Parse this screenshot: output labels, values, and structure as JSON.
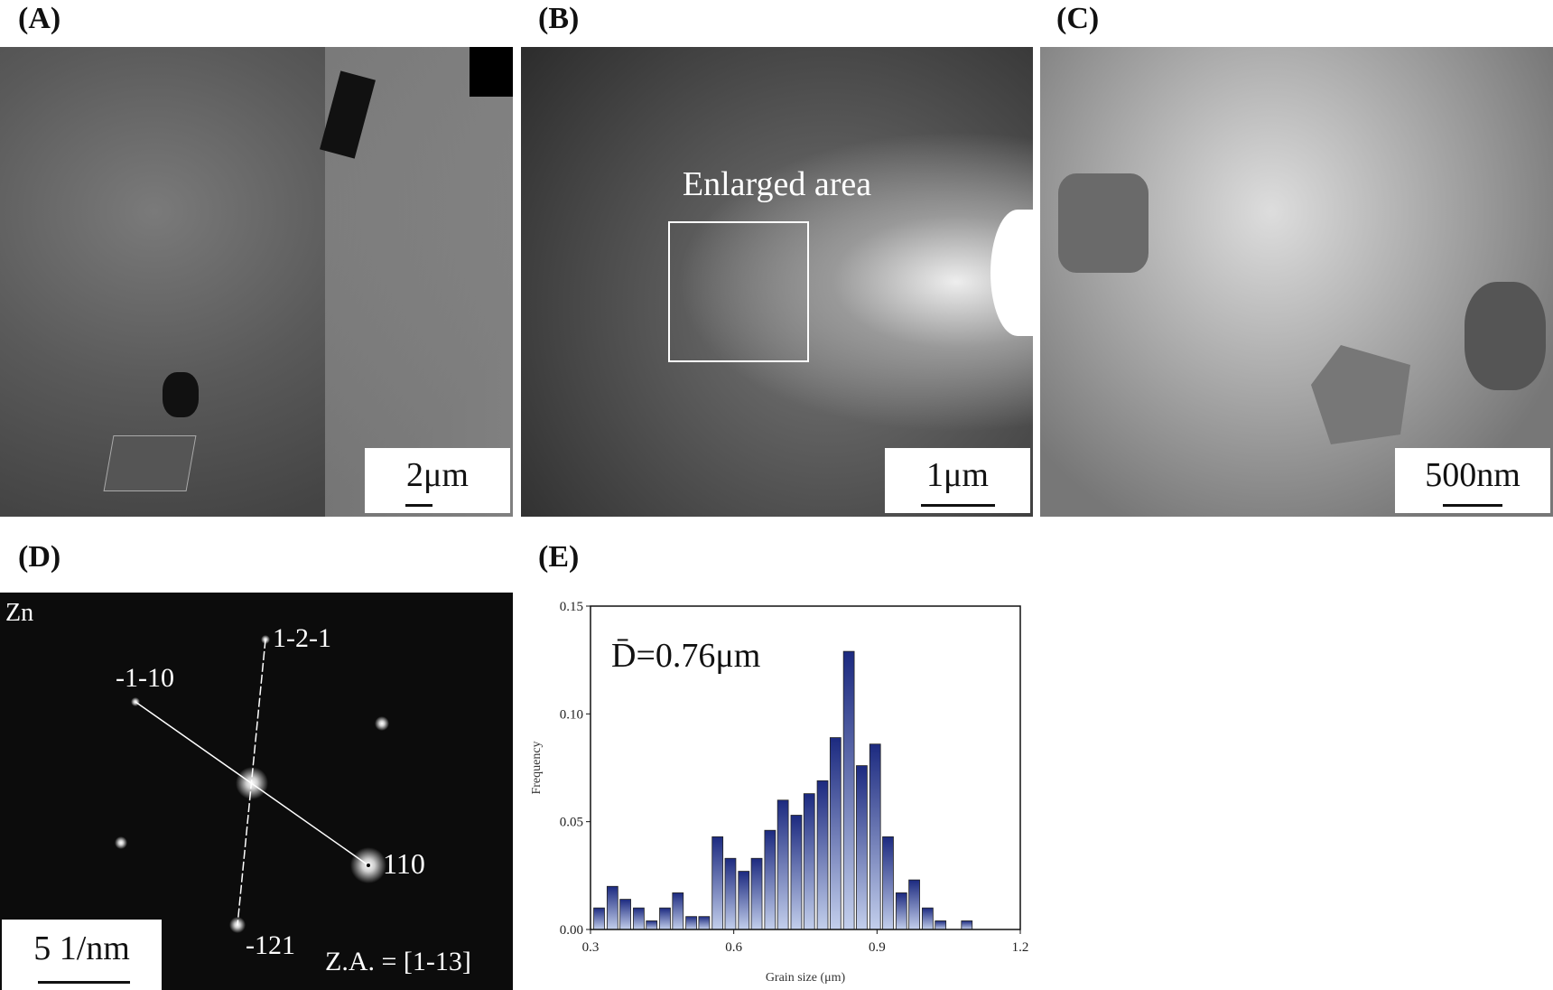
{
  "panels": {
    "A": {
      "label": "(A)",
      "scale_bar": "2μm"
    },
    "B": {
      "label": "(B)",
      "scale_bar": "1μm",
      "annotation": "Enlarged area"
    },
    "C": {
      "label": "(C)",
      "scale_bar": "500nm"
    },
    "D": {
      "label": "(D)",
      "scale_bar": "5 1/nm",
      "element": "Zn",
      "zone_axis": "Z.A. = [1-13]",
      "spots": [
        "1-2-1",
        "-1-10",
        "110",
        "-121"
      ]
    },
    "E": {
      "label": "(E)"
    }
  },
  "colors": {
    "bar_top": "#1c2a80",
    "bar_bottom": "#c3cfec"
  },
  "chart_data": {
    "type": "bar",
    "title": "",
    "annotation": "D̄=0.76μm",
    "annotation_symbol": "D",
    "annotation_value": "=0.76μm",
    "xlabel": "Grain size (μm)",
    "ylabel": "Frequency",
    "xlim": [
      0.3,
      1.2
    ],
    "ylim": [
      0,
      0.15
    ],
    "xticks": [
      "0.3",
      "0.6",
      "0.9",
      "1.2"
    ],
    "yticks": [
      "0.00",
      "0.05",
      "0.10",
      "0.15"
    ],
    "bin_width": 0.0275,
    "x": [
      0.318,
      0.346,
      0.373,
      0.401,
      0.428,
      0.456,
      0.483,
      0.511,
      0.538,
      0.566,
      0.593,
      0.621,
      0.648,
      0.676,
      0.703,
      0.731,
      0.758,
      0.786,
      0.813,
      0.841,
      0.868,
      0.896,
      0.923,
      0.951,
      0.978,
      1.006,
      1.033,
      1.061,
      1.088
    ],
    "values": [
      0.01,
      0.02,
      0.014,
      0.01,
      0.004,
      0.01,
      0.017,
      0.006,
      0.006,
      0.043,
      0.033,
      0.027,
      0.033,
      0.046,
      0.06,
      0.053,
      0.063,
      0.069,
      0.089,
      0.129,
      0.076,
      0.086,
      0.043,
      0.017,
      0.023,
      0.01,
      0.004,
      0.0,
      0.004
    ],
    "grid": false
  }
}
